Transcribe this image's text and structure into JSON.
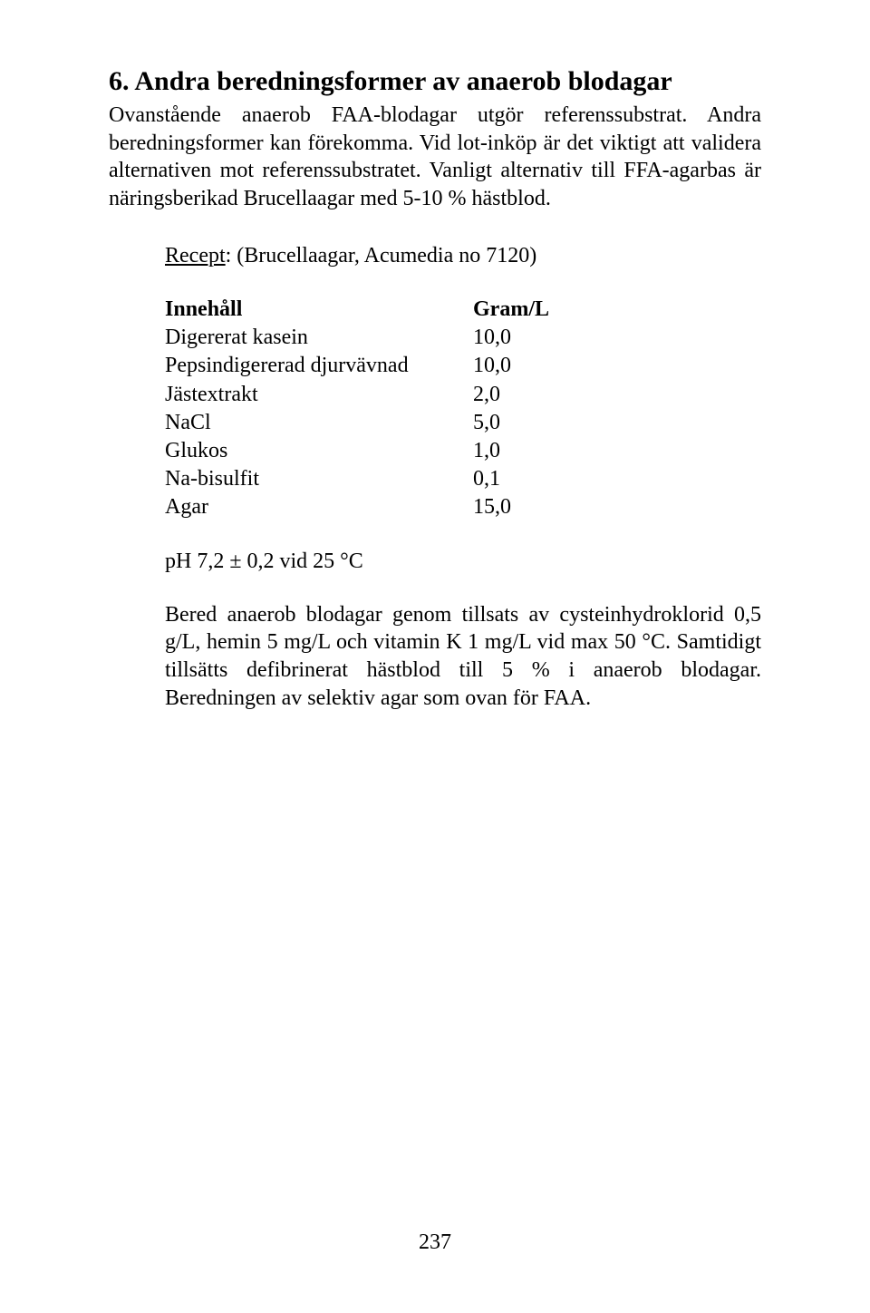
{
  "heading": "6. Andra beredningsformer av anaerob blodagar",
  "intro": "Ovanstående anaerob FAA-blodagar utgör referenssubstrat. Andra berednings­former kan förekomma. Vid lot-inköp är det viktigt att validera alternativen mot referenssubstratet. Vanligt alternativ till FFA-agarbas är näringsberikad Brucella­agar med 5-10 % hästblod.",
  "recipe": {
    "label": "Recept",
    "rest": ": (Brucellaagar, Acumedia no 7120)",
    "header_label": "Innehåll",
    "header_value": "Gram/L",
    "rows": [
      {
        "label": "Digererat kasein",
        "value": "10,0"
      },
      {
        "label": "Pepsindigererad djurvävnad",
        "value": "10,0"
      },
      {
        "label": "Jästextrakt",
        "value": "2,0"
      },
      {
        "label": "NaCl",
        "value": "5,0"
      },
      {
        "label": "Glukos",
        "value": "1,0"
      },
      {
        "label": "Na-bisulfit",
        "value": "0,1"
      },
      {
        "label": "Agar",
        "value": "15,0"
      }
    ],
    "ph_line": "pH  7,2 ± 0,2 vid  25 °C",
    "bered": "Bered anaerob blodagar genom tillsats av cysteinhydroklorid 0,5 g/L, hemin 5 mg/L och vitamin K 1 mg/L vid max 50 °C. Samtidigt tillsätts defibrinerat hästblod till 5 % i anaerob blodagar. Beredningen av selektiv agar som ovan för FAA."
  },
  "page_number": "237"
}
